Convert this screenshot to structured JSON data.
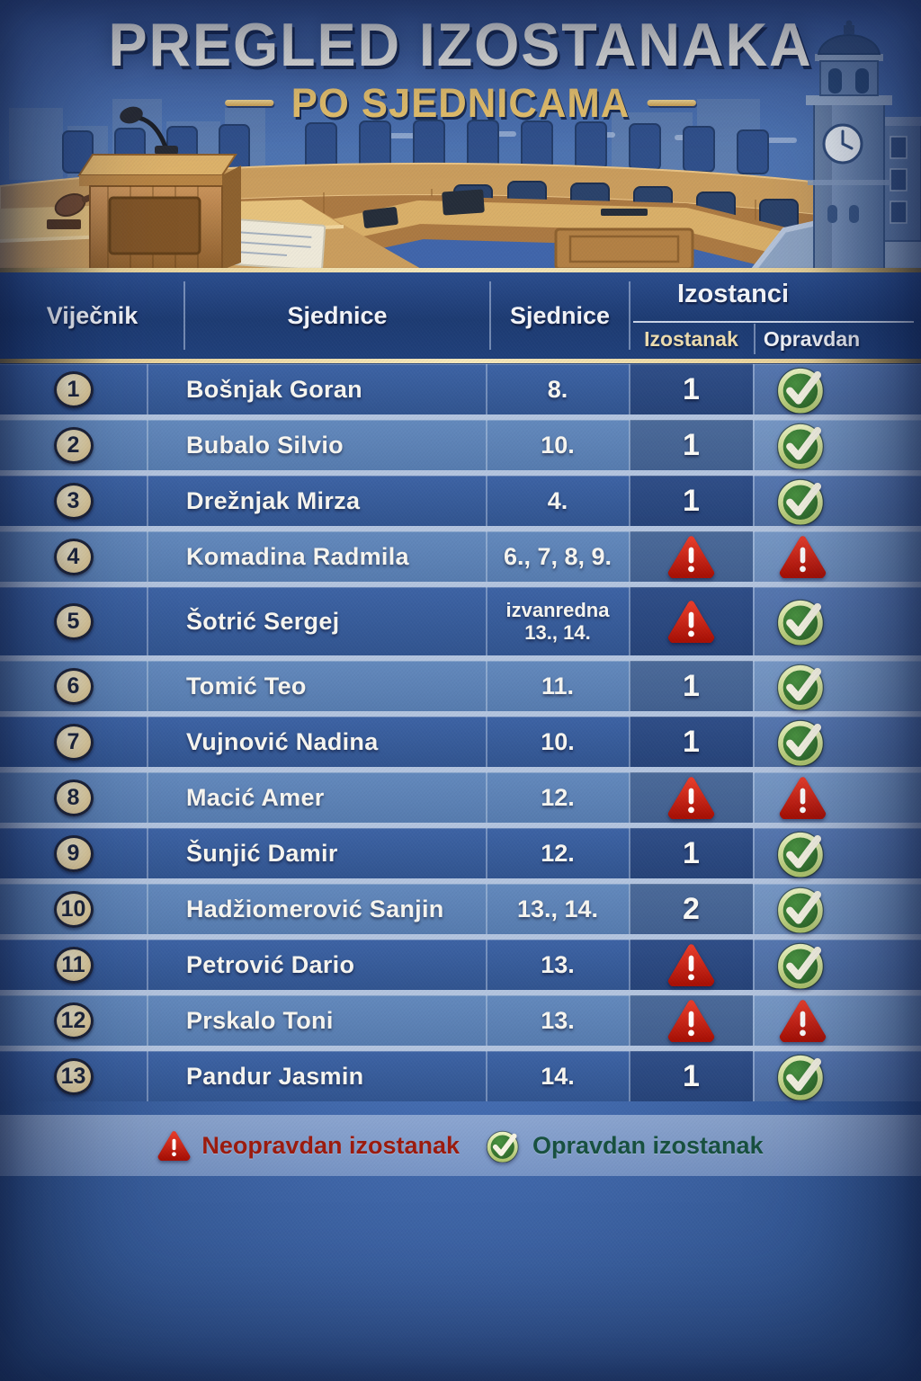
{
  "title": "PREGLED IZOSTANAKA",
  "subtitle": "PO SJEDNICAMA",
  "table": {
    "headers": {
      "councilor": "Viječnik",
      "sessions_a": "Sjednice",
      "sessions_b": "Sjednice",
      "absences_group": "Izostanci",
      "absence": "Izostanak",
      "justified": "Opravdan"
    },
    "rows": [
      {
        "num": "1",
        "name": "Bošnjak Goran",
        "sessions": "8.",
        "absence": {
          "type": "count",
          "value": "1"
        },
        "justified": {
          "type": "check"
        }
      },
      {
        "num": "2",
        "name": "Bubalo Silvio",
        "sessions": "10.",
        "absence": {
          "type": "count",
          "value": "1"
        },
        "justified": {
          "type": "check"
        }
      },
      {
        "num": "3",
        "name": "Drežnjak Mirza",
        "sessions": "4.",
        "absence": {
          "type": "count",
          "value": "1"
        },
        "justified": {
          "type": "check"
        }
      },
      {
        "num": "4",
        "name": "Komadina Radmila",
        "sessions": "6., 7, 8, 9.",
        "absence": {
          "type": "warning"
        },
        "justified": {
          "type": "warning"
        }
      },
      {
        "num": "5",
        "name": "Šotrić Sergej",
        "sessions": "izvanredna\n13., 14.",
        "absence": {
          "type": "warning"
        },
        "justified": {
          "type": "check"
        }
      },
      {
        "num": "6",
        "name": "Tomić Teo",
        "sessions": "11.",
        "absence": {
          "type": "count",
          "value": "1"
        },
        "justified": {
          "type": "check"
        }
      },
      {
        "num": "7",
        "name": "Vujnović Nadina",
        "sessions": "10.",
        "absence": {
          "type": "count",
          "value": "1"
        },
        "justified": {
          "type": "check"
        }
      },
      {
        "num": "8",
        "name": "Macić Amer",
        "sessions": "12.",
        "absence": {
          "type": "warning"
        },
        "justified": {
          "type": "warning"
        }
      },
      {
        "num": "9",
        "name": "Šunjić Damir",
        "sessions": "12.",
        "absence": {
          "type": "count",
          "value": "1"
        },
        "justified": {
          "type": "check"
        }
      },
      {
        "num": "10",
        "name": "Hadžiomerović Sanjin",
        "sessions": "13., 14.",
        "absence": {
          "type": "count",
          "value": "2"
        },
        "justified": {
          "type": "check"
        }
      },
      {
        "num": "11",
        "name": "Petrović Dario",
        "sessions": "13.",
        "absence": {
          "type": "warning"
        },
        "justified": {
          "type": "check"
        }
      },
      {
        "num": "12",
        "name": "Prskalo Toni",
        "sessions": "13.",
        "absence": {
          "type": "warning"
        },
        "justified": {
          "type": "warning"
        }
      },
      {
        "num": "13",
        "name": "Pandur Jasmin",
        "sessions": "14.",
        "absence": {
          "type": "count",
          "value": "1"
        },
        "justified": {
          "type": "check"
        }
      }
    ]
  },
  "legend": {
    "unjustified_label": "Neopravdan izostanak",
    "justified_label": "Opravdan izostanak"
  },
  "icons": {
    "warning": "warning-triangle-icon",
    "check": "check-circle-icon"
  },
  "colors": {
    "accent_gold": "#e9c36c",
    "header_navy": "#1d3b72",
    "row_odd": "#35599a",
    "row_even": "#5d81b5",
    "warning_red": "#c6190c",
    "check_green": "#2e6b2b",
    "badge_cream": "#ecdcae",
    "legend_red_text": "#9b1a0d",
    "legend_green_text": "#17503f"
  },
  "chart_data": {
    "type": "table",
    "title": "PREGLED IZOSTANAKA — PO SJEDNICAMA",
    "columns": [
      "#",
      "Viječnik",
      "Sjednice",
      "Izostanak",
      "Opravdan"
    ],
    "rows": [
      [
        "1",
        "Bošnjak Goran",
        "8.",
        "1",
        "opravdan"
      ],
      [
        "2",
        "Bubalo Silvio",
        "10.",
        "1",
        "opravdan"
      ],
      [
        "3",
        "Drežnjak Mirza",
        "4.",
        "1",
        "opravdan"
      ],
      [
        "4",
        "Komadina Radmila",
        "6., 7, 8, 9.",
        "neopravdan",
        "neopravdan"
      ],
      [
        "5",
        "Šotrić Sergej",
        "izvanredna 13., 14.",
        "neopravdan",
        "opravdan"
      ],
      [
        "6",
        "Tomić Teo",
        "11.",
        "1",
        "opravdan"
      ],
      [
        "7",
        "Vujnović Nadina",
        "10.",
        "1",
        "opravdan"
      ],
      [
        "8",
        "Macić Amer",
        "12.",
        "neopravdan",
        "neopravdan"
      ],
      [
        "9",
        "Šunjić Damir",
        "12.",
        "1",
        "opravdan"
      ],
      [
        "10",
        "Hadžiomerović Sanjin",
        "13., 14.",
        "2",
        "opravdan"
      ],
      [
        "11",
        "Petrović Dario",
        "13.",
        "neopravdan",
        "opravdan"
      ],
      [
        "12",
        "Prskalo Toni",
        "13.",
        "neopravdan",
        "neopravdan"
      ],
      [
        "13",
        "Pandur Jasmin",
        "14.",
        "1",
        "opravdan"
      ]
    ],
    "legend": {
      "warning_triangle": "Neopravdan izostanak",
      "check_mark": "Opravdan izostanak"
    }
  }
}
